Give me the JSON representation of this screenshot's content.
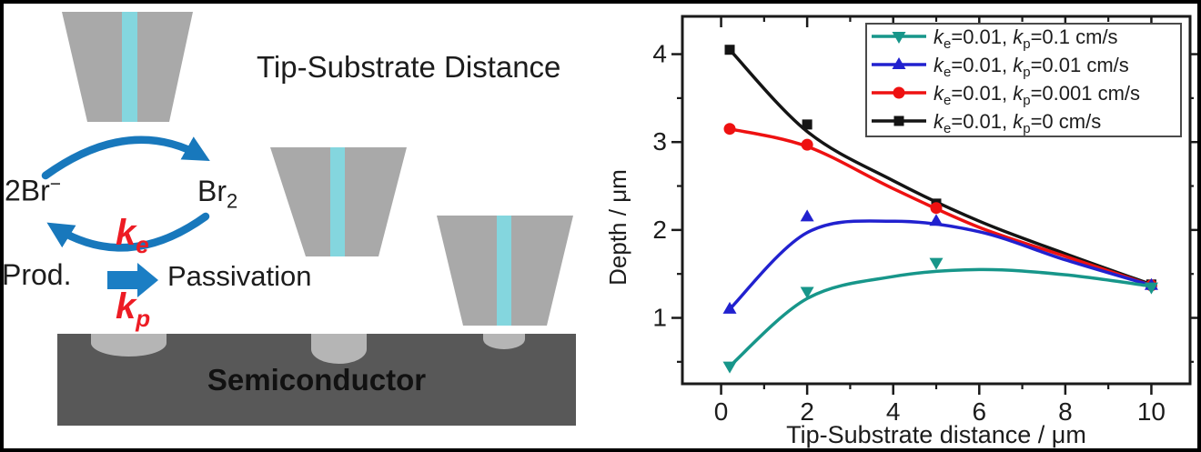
{
  "figure": {
    "title": "Tip-Substrate Distance",
    "schematic": {
      "species_left": {
        "base": "2Br",
        "sup": "−"
      },
      "species_right": {
        "base": "Br",
        "sub": "2"
      },
      "rate_e": {
        "base": "k",
        "sub": "e"
      },
      "rate_p": {
        "base": "k",
        "sub": "p"
      },
      "product_label": "Prod.",
      "passivation_label": "Passivation",
      "substrate_label": "Semiconductor",
      "colors": {
        "tip_gray": "#a9a9a9",
        "tip_stripe_cyan": "#84d6de",
        "substrate_gray": "#585858",
        "pit_gray": "#b5b5b5",
        "cycle_arrow_blue": "#1878bc",
        "rate_red": "#ed1c24"
      }
    }
  },
  "chart_data": {
    "type": "line",
    "title": "",
    "xlabel": "Tip-Substrate distance / μm",
    "ylabel": "Depth / μm",
    "xlim": [
      -0.9,
      10.9
    ],
    "ylim": [
      0.25,
      4.43
    ],
    "x_major_ticks": [
      0,
      2,
      4,
      6,
      8,
      10
    ],
    "x_minor_ticks": [
      1,
      3,
      5,
      7,
      9
    ],
    "y_major_ticks": [
      1,
      2,
      3,
      4
    ],
    "y_minor_ticks": [
      0.5,
      1.5,
      2.5,
      3.5
    ],
    "grid": false,
    "legend_position": "top-right",
    "axis_color": "#1a1a1a",
    "series": [
      {
        "name": "ke=0.01, kp=0.1 cm/s",
        "label_parts": {
          "k1": "k",
          "sub1": "e",
          "mid": "=0.01, ",
          "k2": "k",
          "sub2": "p",
          "tail": "=0.1 cm/s"
        },
        "color": "#17968a",
        "marker": "triangle-down",
        "points_x": [
          0.2,
          2,
          5,
          10
        ],
        "points_y": [
          0.45,
          1.3,
          1.63,
          1.35
        ],
        "curve_x": [
          0.2,
          2,
          4,
          6,
          8,
          10
        ],
        "curve_y": [
          0.45,
          1.22,
          1.47,
          1.55,
          1.49,
          1.36
        ]
      },
      {
        "name": "ke=0.01, kp=0.01 cm/s",
        "label_parts": {
          "k1": "k",
          "sub1": "e",
          "mid": "=0.01, ",
          "k2": "k",
          "sub2": "p",
          "tail": "=0.01 cm/s"
        },
        "color": "#2121cf",
        "marker": "triangle-up",
        "points_x": [
          0.2,
          2,
          5,
          10
        ],
        "points_y": [
          1.1,
          2.15,
          2.1,
          1.37
        ],
        "curve_x": [
          0.2,
          2,
          4,
          6,
          8,
          10
        ],
        "curve_y": [
          1.1,
          1.97,
          2.1,
          1.98,
          1.66,
          1.37
        ]
      },
      {
        "name": "ke=0.01, kp=0.001 cm/s",
        "label_parts": {
          "k1": "k",
          "sub1": "e",
          "mid": "=0.01, ",
          "k2": "k",
          "sub2": "p",
          "tail": "=0.001 cm/s"
        },
        "color": "#ee1111",
        "marker": "circle",
        "points_x": [
          0.2,
          2,
          5,
          10
        ],
        "points_y": [
          3.15,
          2.97,
          2.25,
          1.37
        ],
        "curve_x": [
          0.2,
          2,
          4,
          6,
          8,
          10
        ],
        "curve_y": [
          3.15,
          2.95,
          2.47,
          2.03,
          1.7,
          1.37
        ]
      },
      {
        "name": "ke=0.01, kp=0 cm/s",
        "label_parts": {
          "k1": "k",
          "sub1": "e",
          "mid": "=0.01, ",
          "k2": "k",
          "sub2": "p",
          "tail": "=0 cm/s"
        },
        "color": "#141414",
        "marker": "square",
        "points_x": [
          0.2,
          2,
          5,
          10
        ],
        "points_y": [
          4.05,
          3.2,
          2.3,
          1.38
        ],
        "curve_x": [
          0.2,
          2,
          4,
          6,
          8,
          10
        ],
        "curve_y": [
          4.05,
          3.12,
          2.56,
          2.1,
          1.73,
          1.38
        ]
      }
    ]
  }
}
